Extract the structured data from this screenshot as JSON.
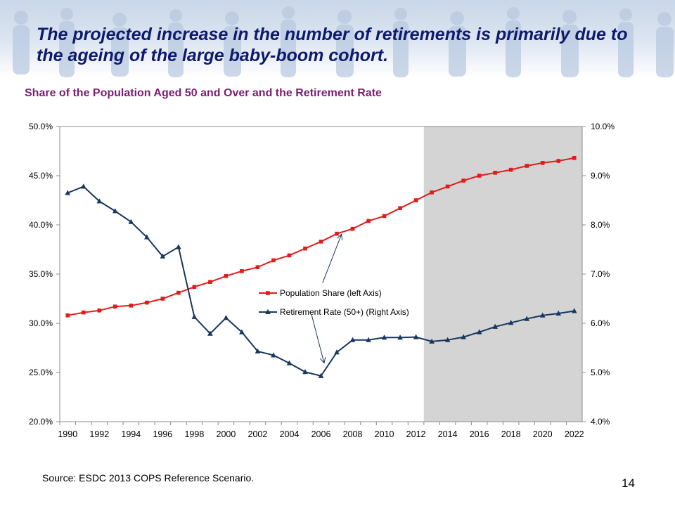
{
  "slide": {
    "title": "The projected increase in the number of retirements is primarily due to the ageing of the large baby-boom cohort.",
    "source": "Source: ESDC 2013 COPS Reference Scenario.",
    "page_number": "14"
  },
  "colors": {
    "title": "#0d1a6e",
    "chart_title": "#7b1e72",
    "population_series": "#e31b1b",
    "retirement_series": "#17375e",
    "projection_shading": "#d4d4d4"
  },
  "chart_data": {
    "type": "line",
    "title": "Share of the Population Aged 50 and Over and the Retirement Rate",
    "x": [
      1990,
      1991,
      1992,
      1993,
      1994,
      1995,
      1996,
      1997,
      1998,
      1999,
      2000,
      2001,
      2002,
      2003,
      2004,
      2005,
      2006,
      2007,
      2008,
      2009,
      2010,
      2011,
      2012,
      2013,
      2014,
      2015,
      2016,
      2017,
      2018,
      2019,
      2020,
      2021,
      2022
    ],
    "x_tick_labels": [
      "1990",
      "1992",
      "1994",
      "1996",
      "1998",
      "2000",
      "2002",
      "2004",
      "2006",
      "2008",
      "2010",
      "2012",
      "2014",
      "2016",
      "2018",
      "2020",
      "2022"
    ],
    "y_left": {
      "range": [
        20,
        50
      ],
      "ticks": [
        "20.0%",
        "25.0%",
        "30.0%",
        "35.0%",
        "40.0%",
        "45.0%",
        "50.0%"
      ]
    },
    "y_right": {
      "range": [
        4,
        10
      ],
      "ticks": [
        "4.0%",
        "5.0%",
        "6.0%",
        "7.0%",
        "8.0%",
        "9.0%",
        "10.0%"
      ]
    },
    "projection_start": 2013,
    "grid": false,
    "legend_placement": "center",
    "series": [
      {
        "name": "Population Share (left Axis)",
        "axis": "left",
        "marker": "square",
        "values": [
          30.8,
          31.1,
          31.3,
          31.7,
          31.8,
          32.1,
          32.5,
          33.1,
          33.7,
          34.2,
          34.8,
          35.3,
          35.7,
          36.4,
          36.9,
          37.6,
          38.3,
          39.1,
          39.6,
          40.4,
          40.9,
          41.7,
          42.5,
          43.3,
          43.9,
          44.5,
          45.0,
          45.3,
          45.6,
          46.0,
          46.3,
          46.5,
          46.8
        ]
      },
      {
        "name": "Retirement  Rate (50+) (Right Axis)",
        "axis": "right",
        "marker": "triangle",
        "values": [
          8.65,
          8.78,
          8.48,
          8.28,
          8.06,
          7.75,
          7.36,
          7.55,
          6.13,
          5.79,
          6.11,
          5.82,
          5.43,
          5.35,
          5.19,
          5.01,
          4.93,
          5.41,
          5.66,
          5.66,
          5.71,
          5.71,
          5.72,
          5.63,
          5.66,
          5.72,
          5.82,
          5.93,
          6.01,
          6.09,
          6.16,
          6.2,
          6.25
        ]
      }
    ],
    "annotations": [
      {
        "type": "arrow",
        "from_year": 2006.1,
        "from_value_right": 6.82,
        "to_year": 2007.3,
        "to_value_right": 7.81,
        "target_series": "Population Share (left Axis)"
      },
      {
        "type": "arrow",
        "from_year": 2005.4,
        "from_value_right": 6.18,
        "to_year": 2006.2,
        "to_value_right": 5.19,
        "target_series": "Retirement  Rate (50+) (Right Axis)"
      }
    ]
  }
}
